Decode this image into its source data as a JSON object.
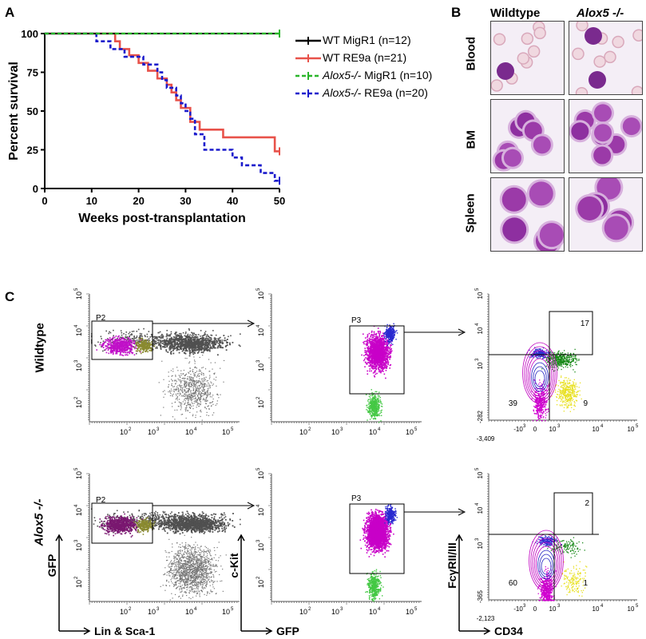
{
  "panels": {
    "a": "A",
    "b": "B",
    "c": "C"
  },
  "chart_data": {
    "type": "line",
    "xlabel": "Weeks post-transplantation",
    "ylabel": "Percent survival",
    "xticks": [
      0,
      10,
      20,
      30,
      40,
      50
    ],
    "yticks": [
      0,
      25,
      50,
      75,
      100
    ],
    "xlim": [
      0,
      50
    ],
    "ylim": [
      0,
      100
    ],
    "series": [
      {
        "name": "WT MigR1 (n=12)",
        "color": "#000000",
        "dash": false,
        "x": [
          0,
          50
        ],
        "y": [
          100,
          100
        ]
      },
      {
        "name": "WT RE9a (n=21)",
        "color": "#e8524a",
        "dash": false,
        "x": [
          0,
          15,
          15,
          16,
          16,
          18,
          18,
          20,
          20,
          22,
          22,
          24,
          24,
          26,
          26,
          27,
          27,
          28,
          28,
          29,
          29,
          31,
          31,
          33,
          33,
          38,
          38,
          49,
          49,
          50
        ],
        "y": [
          100,
          100,
          95,
          95,
          90,
          90,
          86,
          86,
          81,
          81,
          76,
          76,
          71,
          71,
          67,
          67,
          62,
          62,
          57,
          57,
          52,
          52,
          43,
          43,
          38,
          38,
          33,
          33,
          24,
          24
        ]
      },
      {
        "name": "Alox5-/- MigR1 (n=10)",
        "color": "#2ab52a",
        "dash": true,
        "x": [
          0,
          50
        ],
        "y": [
          100,
          100
        ]
      },
      {
        "name": "Alox5-/- RE9a (n=20)",
        "color": "#1a1acc",
        "dash": true,
        "x": [
          0,
          11,
          11,
          14,
          14,
          17,
          17,
          21,
          21,
          24,
          24,
          25,
          25,
          26,
          26,
          28,
          28,
          29,
          29,
          30,
          30,
          31,
          31,
          32,
          32,
          34,
          34,
          40,
          40,
          42,
          42,
          46,
          46,
          49,
          49,
          50
        ],
        "y": [
          100,
          100,
          95,
          95,
          90,
          90,
          85,
          85,
          80,
          80,
          75,
          75,
          70,
          70,
          65,
          65,
          60,
          60,
          55,
          55,
          50,
          50,
          45,
          45,
          35,
          35,
          25,
          25,
          20,
          20,
          15,
          15,
          10,
          10,
          5,
          5
        ]
      }
    ]
  },
  "legend": [
    {
      "prefix": "",
      "italic": "",
      "text": "WT MigR1 (n=12)"
    },
    {
      "prefix": "",
      "italic": "",
      "text": "WT RE9a (n=21)"
    },
    {
      "prefix": "",
      "italic": "Alox5-/-",
      "text": " MigR1 (n=10)"
    },
    {
      "prefix": "",
      "italic": "Alox5-/-",
      "text": " RE9a (n=20)"
    }
  ],
  "micro": {
    "col_wildtype": "Wildtype",
    "col_alox5": "Alox5 -/-",
    "rows": [
      "Blood",
      "BM",
      "Spleen"
    ]
  },
  "flow": {
    "rows": [
      "Wildtype",
      "Alox5 -/-"
    ],
    "gate_p2": "P2",
    "gate_p3": "P3",
    "xlabel1": "Lin & Sca-1",
    "ylabel1": "GFP",
    "xlabel2": "GFP",
    "ylabel2": "c-Kit",
    "xlabel3": "CD34",
    "ylabel3": "FcγRII/III",
    "wt_quadrants": {
      "q_ur": "17",
      "q_ll": "39",
      "q_lr": "9"
    },
    "ko_quadrants": {
      "q_ur": "2",
      "q_ll": "60",
      "q_lr": "1"
    },
    "wt_axis_min_x": "-3,409",
    "wt_axis_min_y": "-282",
    "ko_axis_min_x": "-2,123",
    "ko_axis_min_y": "-365",
    "ticks": [
      "10^2",
      "10^3",
      "10^4",
      "10^5"
    ]
  }
}
